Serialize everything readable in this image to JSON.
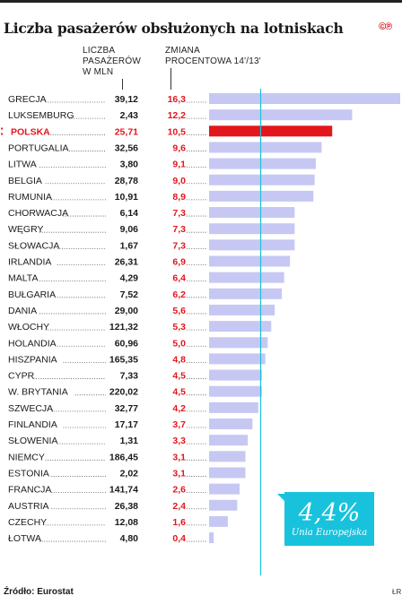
{
  "title": "Liczba pasażerów obsłużonych na lotniskach",
  "logo": "©℗",
  "headers": {
    "passengers": [
      "LICZBA",
      "PASAŻERÓW",
      "W MLN"
    ],
    "change": [
      "ZMIANA",
      "PROCENTOWA 14'/13'"
    ]
  },
  "source": "Źródło: Eurostat",
  "credit": "ŁR",
  "colors": {
    "bar": "#c6c8f3",
    "highlight_bar": "#e3161b",
    "highlight_text": "#e3161b",
    "change_text": "#e3161b",
    "reference_line": "#19c2dc"
  },
  "reference": {
    "value": "4,4%",
    "label": "Unia Europejska"
  },
  "chart_data": {
    "type": "bar",
    "orientation": "horizontal",
    "highlight": "POLSKA",
    "reference_line": 4.4,
    "xlim": [
      0,
      16.3
    ],
    "categories": [
      "GRECJA",
      "LUKSEMBURG",
      "POLSKA",
      "PORTUGALIA",
      "LITWA",
      "BELGIA",
      "RUMUNIA",
      "CHORWACJA",
      "WĘGRY",
      "SŁOWACJA",
      "IRLANDIA",
      "MALTA",
      "BUŁGARIA",
      "DANIA",
      "WŁOCHY",
      "HOLANDIA",
      "HISZPANIA",
      "CYPR",
      "W. BRYTANIA",
      "SZWECJA",
      "FINLANDIA",
      "SŁOWENIA",
      "NIEMCY",
      "ESTONIA",
      "FRANCJA",
      "AUSTRIA",
      "CZECHY",
      "ŁOTWA"
    ],
    "passengers": [
      "39,12",
      "2,43",
      "25,71",
      "32,56",
      "3,80",
      "28,78",
      "10,91",
      "6,14",
      "9,06",
      "1,67",
      "26,31",
      "4,29",
      "7,52",
      "29,00",
      "121,32",
      "60,96",
      "165,35",
      "7,33",
      "220,02",
      "32,77",
      "17,17",
      "1,31",
      "186,45",
      "2,02",
      "141,74",
      "26,38",
      "12,08",
      "4,80"
    ],
    "change_labels": [
      "16,3",
      "12,2",
      "10,5",
      "9,6",
      "9,1",
      "9,0",
      "8,9",
      "7,3",
      "7,3",
      "7,3",
      "6,9",
      "6,4",
      "6,2",
      "5,6",
      "5,3",
      "5,0",
      "4,8",
      "4,5",
      "4,5",
      "4,2",
      "3,7",
      "3,3",
      "3,1",
      "3,1",
      "2,6",
      "2,4",
      "1,6",
      "0,4"
    ],
    "values": [
      16.3,
      12.2,
      10.5,
      9.6,
      9.1,
      9.0,
      8.9,
      7.3,
      7.3,
      7.3,
      6.9,
      6.4,
      6.2,
      5.6,
      5.3,
      5.0,
      4.8,
      4.5,
      4.5,
      4.2,
      3.7,
      3.3,
      3.1,
      3.1,
      2.6,
      2.4,
      1.6,
      0.4
    ]
  }
}
